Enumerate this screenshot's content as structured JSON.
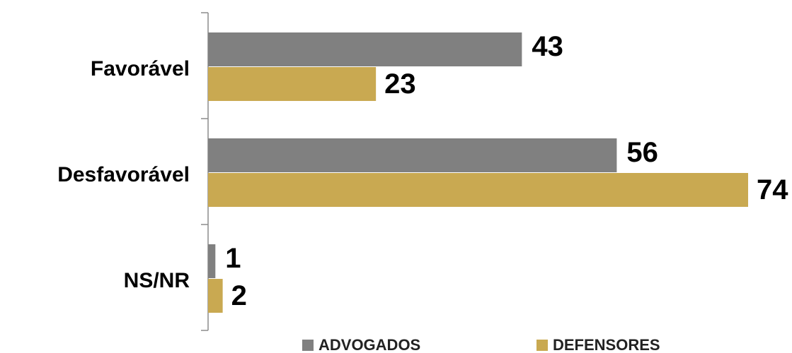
{
  "chart_data": {
    "type": "barh",
    "categories": [
      "Favorável",
      "Desfavorável",
      "NS/NR"
    ],
    "series": [
      {
        "name": "ADVOGADOS",
        "color": "#808080",
        "values": [
          43,
          56,
          1
        ]
      },
      {
        "name": "DEFENSORES",
        "color": "#c9a951",
        "values": [
          23,
          74,
          2
        ]
      }
    ],
    "legend": "bottom"
  }
}
